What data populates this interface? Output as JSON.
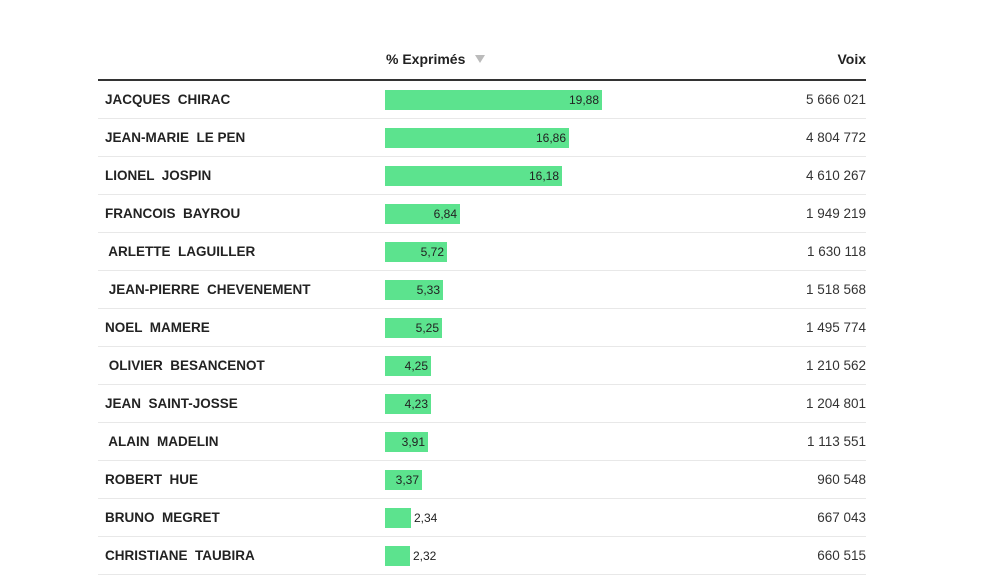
{
  "table": {
    "headers": {
      "name": "",
      "pct": "% Exprimés",
      "voix": "Voix"
    },
    "colors": {
      "bar": "#5ce38e",
      "sort_icon": "#bbbbbb"
    }
  },
  "chart_data": {
    "type": "bar",
    "orientation": "horizontal",
    "title": "",
    "xlabel": "% Exprimés",
    "ylabel": "",
    "xlim": [
      0,
      19.88
    ],
    "categories": [
      "JACQUES  CHIRAC",
      "JEAN-MARIE  LE PEN",
      "LIONEL  JOSPIN",
      "FRANCOIS  BAYROU",
      " ARLETTE  LAGUILLER",
      " JEAN-PIERRE  CHEVENEMENT",
      "NOEL  MAMERE",
      " OLIVIER  BESANCENOT",
      "JEAN  SAINT-JOSSE",
      " ALAIN  MADELIN",
      "ROBERT  HUE",
      "BRUNO  MEGRET",
      "CHRISTIANE  TAUBIRA"
    ],
    "values": [
      19.88,
      16.86,
      16.18,
      6.84,
      5.72,
      5.33,
      5.25,
      4.25,
      4.23,
      3.91,
      3.37,
      2.34,
      2.32
    ],
    "value_labels": [
      "19,88",
      "16,86",
      "16,18",
      "6,84",
      "5,72",
      "5,33",
      "5,25",
      "4,25",
      "4,23",
      "3,91",
      "3,37",
      "2,34",
      "2,32"
    ],
    "voix": [
      "5 666 021",
      "4 804 772",
      "4 610 267",
      "1 949 219",
      "1 630 118",
      "1 518 568",
      "1 495 774",
      "1 210 562",
      "1 204 801",
      "1 113 551",
      "960 548",
      "667 043",
      "660 515"
    ]
  }
}
